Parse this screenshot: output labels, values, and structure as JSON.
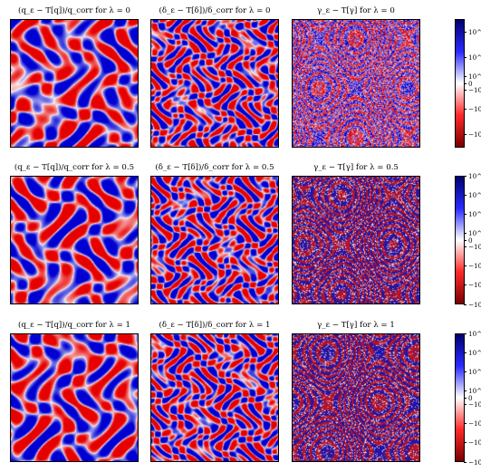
{
  "figure": {
    "rows": [
      {
        "lambda": 0,
        "titles": [
          "(q_ε − T[q])/q_corr for λ = 0",
          "(δ_ε − T[δ])/δ_corr for λ = 0",
          "γ_ε − T[γ] for λ = 0"
        ],
        "colorbar_ticks": [
          "10^−3",
          "10^−4",
          "10^−5",
          "0",
          "−10^−5",
          "−10^−4",
          "−10^−3"
        ],
        "colorbar_tick_levels": [
          0.9,
          0.7,
          0.55,
          0.5,
          0.45,
          0.3,
          0.1
        ]
      },
      {
        "lambda": 0.5,
        "titles": [
          "(q_ε − T[q])/q_corr for λ = 0.5",
          "(δ_ε − T[δ])/δ_corr for λ = 0.5",
          "γ_ε − T[γ] for λ = 0.5"
        ],
        "colorbar_ticks": [
          "10^−4",
          "10^−5",
          "10^−6",
          "10^−7",
          "0",
          "−10^−7",
          "−10^−6",
          "−10^−5",
          "−10^−4"
        ],
        "colorbar_tick_levels": [
          1.0,
          0.85,
          0.7,
          0.55,
          0.5,
          0.45,
          0.3,
          0.15,
          0.0
        ]
      },
      {
        "lambda": 1,
        "titles": [
          "(q_ε − T[q])/q_corr for λ = 1",
          "(δ_ε − T[δ])/δ_corr for λ = 1",
          "γ_ε − T[γ] for λ = 1"
        ],
        "colorbar_ticks": [
          "10^−2",
          "10^−3",
          "10^−4",
          "10^−5",
          "0",
          "−10^−5",
          "−10^−4",
          "−10^−3",
          "−10^−2"
        ],
        "colorbar_tick_levels": [
          1.0,
          0.85,
          0.7,
          0.55,
          0.5,
          0.45,
          0.3,
          0.15,
          0.0
        ]
      }
    ],
    "colormap": {
      "positive": "#00006e",
      "mid": "#ffffff",
      "negative": "#7a0000"
    }
  }
}
